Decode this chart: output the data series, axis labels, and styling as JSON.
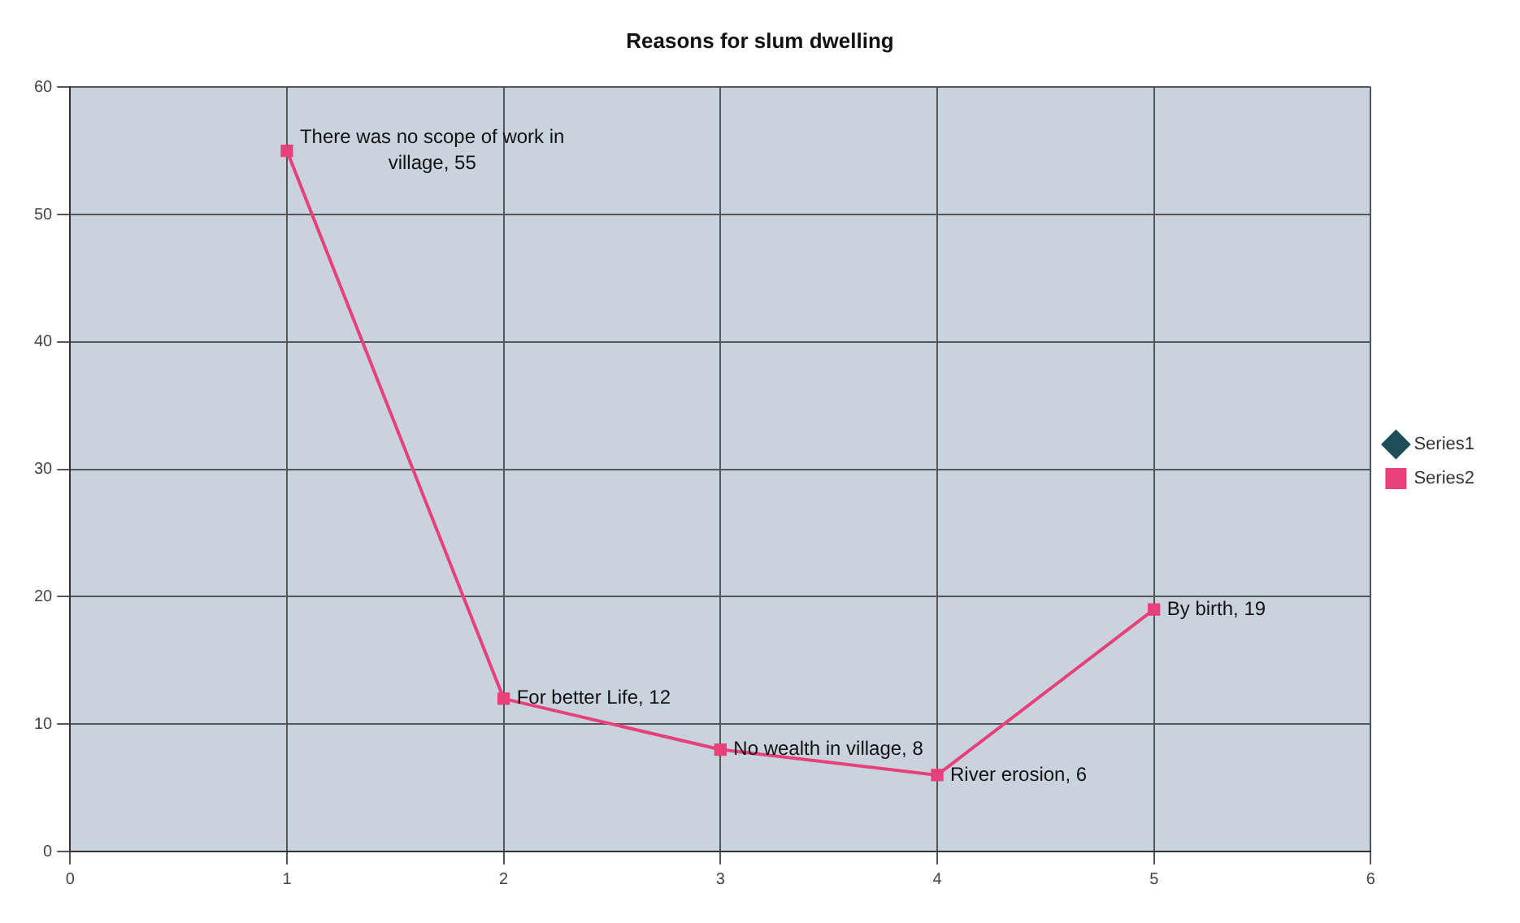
{
  "chart_data": {
    "type": "line",
    "title": "Reasons for slum dwelling",
    "x": [
      1,
      2,
      3,
      4,
      5
    ],
    "series": [
      {
        "name": "Series1",
        "color": "#1f4e5a",
        "marker": "diamond",
        "values": [
          null,
          null,
          null,
          null,
          null
        ]
      },
      {
        "name": "Series2",
        "color": "#e8407a",
        "marker": "square",
        "values": [
          55,
          12,
          8,
          6,
          19
        ]
      }
    ],
    "xlim": [
      0,
      6
    ],
    "xticks": [
      0,
      1,
      2,
      3,
      4,
      5,
      6
    ],
    "ylim": [
      0,
      60
    ],
    "yticks": [
      0,
      10,
      20,
      30,
      40,
      50,
      60
    ],
    "grid": true,
    "legend": "right",
    "annotations": [
      {
        "text": "There was no scope of work in village, 55",
        "x": 1,
        "y": 55
      },
      {
        "text": "For better Life, 12",
        "x": 2,
        "y": 12
      },
      {
        "text": "No wealth in village, 8",
        "x": 3,
        "y": 8
      },
      {
        "text": "River erosion, 6",
        "x": 4,
        "y": 6
      },
      {
        "text": "By birth, 19",
        "x": 5,
        "y": 19
      }
    ]
  }
}
